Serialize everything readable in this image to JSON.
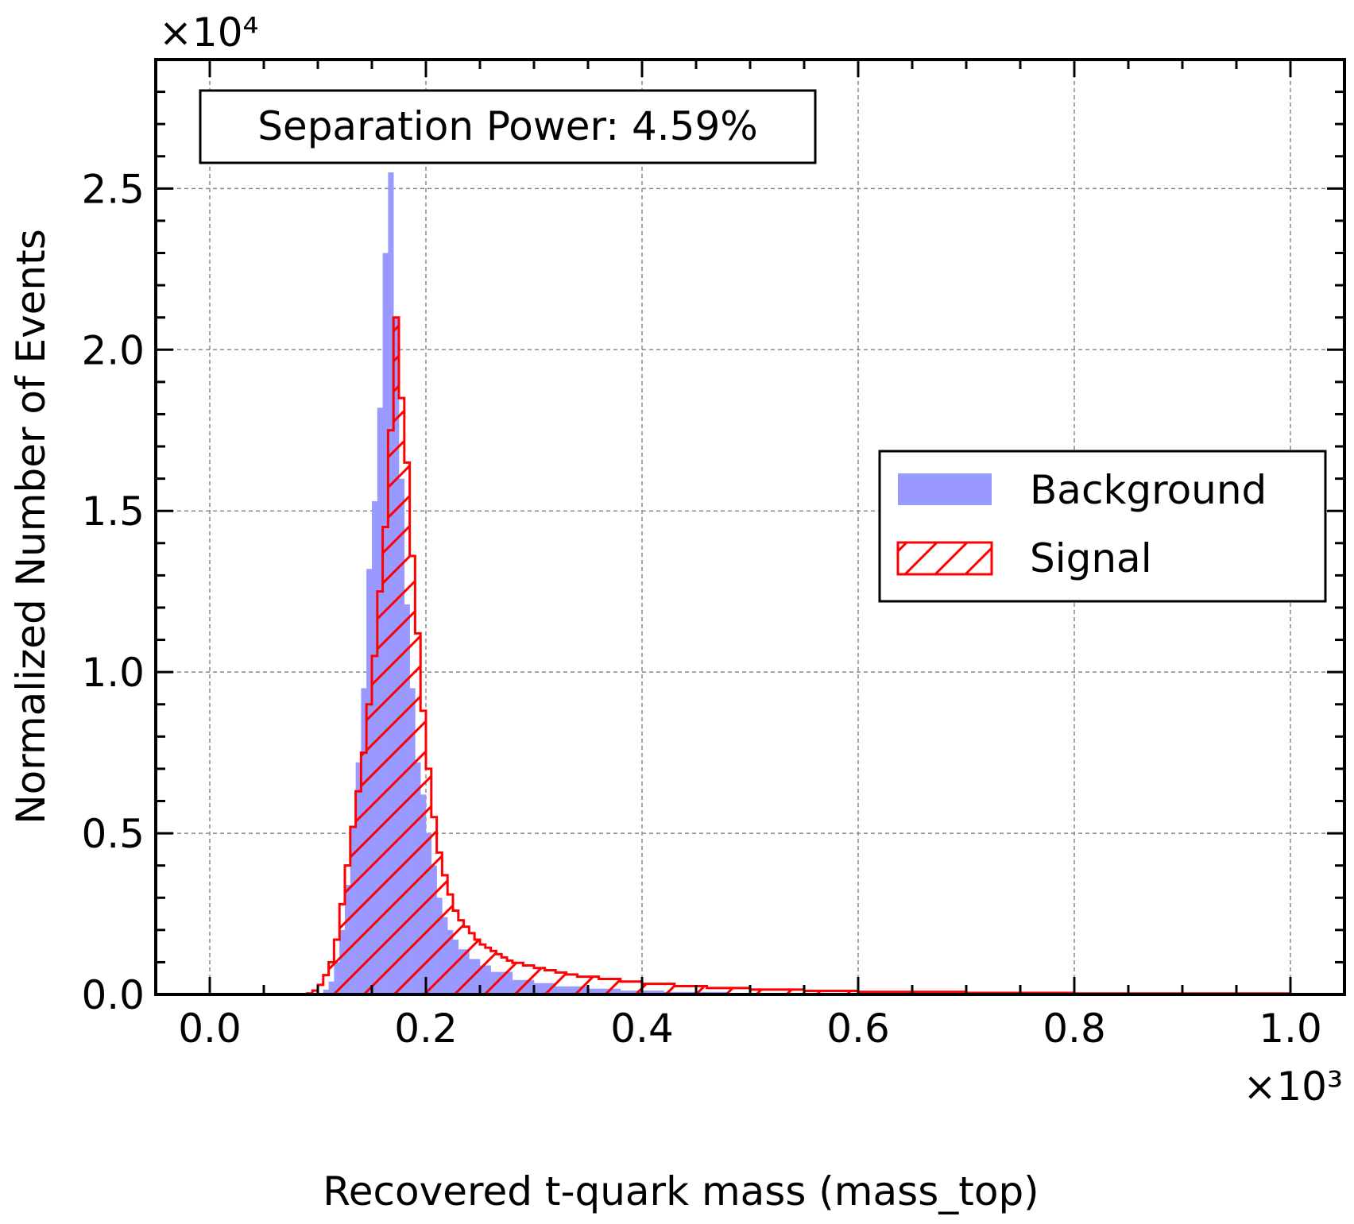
{
  "chart_data": {
    "type": "histogram",
    "title": "",
    "xlabel": "Recovered t-quark mass (mass_top)",
    "ylabel": "Normalized Number of Events",
    "x_multiplier": "×10³",
    "y_multiplier": "×10⁴",
    "xlim": [
      -0.05,
      1.05
    ],
    "ylim": [
      0,
      2.9
    ],
    "x_ticks": [
      0.0,
      0.2,
      0.4,
      0.6,
      0.8,
      1.0
    ],
    "x_tick_labels": [
      "0.0",
      "0.2",
      "0.4",
      "0.6",
      "0.8",
      "1.0"
    ],
    "y_ticks": [
      0.0,
      0.5,
      1.0,
      1.5,
      2.0,
      2.5
    ],
    "y_tick_labels": [
      "0.0",
      "0.5",
      "1.0",
      "1.5",
      "2.0",
      "2.5"
    ],
    "grid": true,
    "legend_position": "center-right",
    "annotation": "Separation Power: 4.59%",
    "bin_edges_start": 0.09,
    "bin_edges_end": 1.0,
    "bin_width": 0.005,
    "series": [
      {
        "name": "Background",
        "style": "filled",
        "color": "#9999ff",
        "edges": [
          0.09,
          0.095,
          0.1,
          0.105,
          0.11,
          0.115,
          0.12,
          0.125,
          0.13,
          0.135,
          0.14,
          0.145,
          0.15,
          0.155,
          0.16,
          0.165,
          0.17,
          0.175,
          0.18,
          0.185,
          0.19,
          0.195,
          0.2,
          0.205,
          0.21,
          0.215,
          0.22,
          0.225,
          0.23,
          0.24,
          0.25,
          0.26,
          0.28,
          0.3,
          0.32,
          0.35,
          0.38,
          0.42,
          0.48,
          0.55,
          0.65,
          0.8,
          1.0
        ],
        "values": [
          0.0005,
          0.002,
          0.005,
          0.015,
          0.04,
          0.1,
          0.2,
          0.34,
          0.52,
          0.72,
          0.95,
          1.32,
          1.53,
          1.82,
          2.3,
          2.55,
          2.1,
          1.6,
          1.21,
          0.95,
          0.72,
          0.62,
          0.5,
          0.4,
          0.3,
          0.24,
          0.2,
          0.17,
          0.14,
          0.11,
          0.09,
          0.07,
          0.045,
          0.035,
          0.025,
          0.018,
          0.012,
          0.008,
          0.005,
          0.003,
          0.002,
          0.001
        ]
      },
      {
        "name": "Signal",
        "style": "hatched",
        "color": "#ff0000",
        "edges": [
          0.09,
          0.095,
          0.1,
          0.105,
          0.11,
          0.115,
          0.12,
          0.125,
          0.13,
          0.135,
          0.14,
          0.145,
          0.15,
          0.155,
          0.16,
          0.165,
          0.17,
          0.175,
          0.18,
          0.185,
          0.19,
          0.195,
          0.2,
          0.205,
          0.21,
          0.215,
          0.22,
          0.225,
          0.23,
          0.235,
          0.24,
          0.245,
          0.25,
          0.255,
          0.26,
          0.265,
          0.27,
          0.275,
          0.28,
          0.29,
          0.3,
          0.31,
          0.32,
          0.33,
          0.34,
          0.36,
          0.38,
          0.4,
          0.43,
          0.46,
          0.5,
          0.55,
          0.6,
          0.7,
          0.8,
          1.0
        ],
        "values": [
          0.003,
          0.012,
          0.03,
          0.06,
          0.1,
          0.17,
          0.28,
          0.4,
          0.52,
          0.63,
          0.75,
          0.9,
          1.05,
          1.25,
          1.45,
          1.75,
          2.1,
          1.85,
          1.65,
          1.36,
          1.12,
          0.88,
          0.7,
          0.55,
          0.44,
          0.37,
          0.31,
          0.26,
          0.23,
          0.21,
          0.19,
          0.17,
          0.155,
          0.145,
          0.135,
          0.125,
          0.115,
          0.105,
          0.098,
          0.09,
          0.082,
          0.075,
          0.068,
          0.062,
          0.055,
          0.048,
          0.04,
          0.033,
          0.026,
          0.02,
          0.015,
          0.011,
          0.008,
          0.005,
          0.003
        ]
      }
    ]
  }
}
